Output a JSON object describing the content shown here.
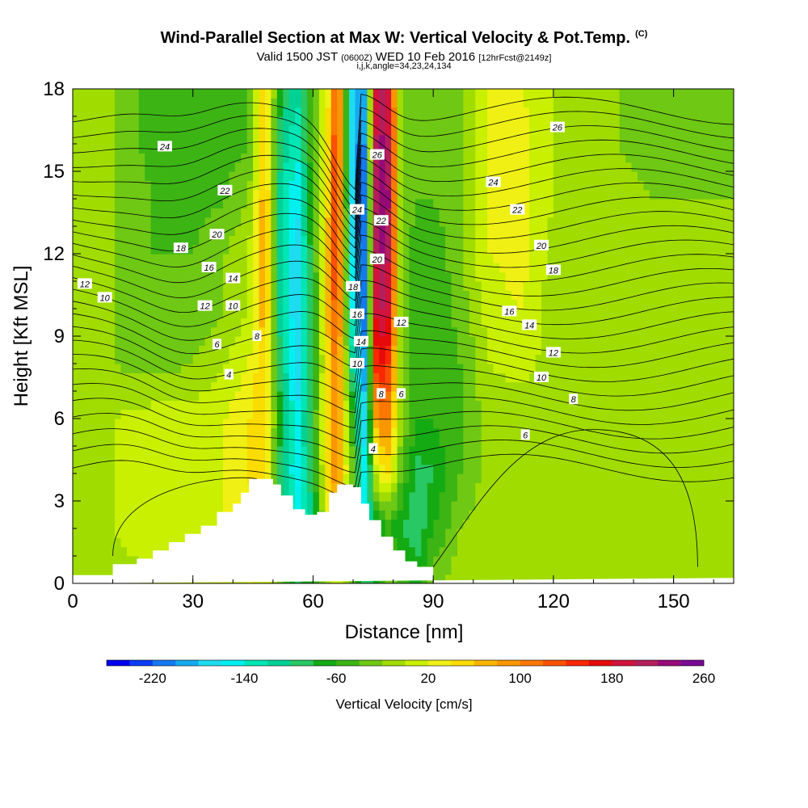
{
  "header": {
    "title": "Wind-Parallel Section at Max W: Vertical Velocity & Pot.Temp.",
    "copyright": "(C)",
    "valid_main": "Valid 1500 JST",
    "valid_utc": "(0600Z)",
    "valid_date": "WED 10 Feb 2016",
    "valid_fcst": "[12hrFcst@2149z]",
    "indices": "i,j,k,angle=34,23,24,134"
  },
  "chart_data": {
    "type": "heatmap",
    "title": "Wind-Parallel Section at Max W: Vertical Velocity & Pot.Temp.",
    "xlabel": "Distance [nm]",
    "ylabel": "Height [Kft MSL]",
    "xlim": [
      0,
      165
    ],
    "ylim": [
      0,
      18
    ],
    "x_ticks": [
      "0",
      "30",
      "60",
      "90",
      "120",
      "150"
    ],
    "y_ticks": [
      "0",
      "3",
      "6",
      "9",
      "12",
      "15",
      "18"
    ],
    "colorbar": {
      "label": "Vertical Velocity [cm/s]",
      "tick_labels": [
        "-220",
        "-140",
        "-60",
        "20",
        "100",
        "180",
        "260"
      ],
      "colors": [
        "#0000f0",
        "#0a3cf5",
        "#1478f0",
        "#14aaf0",
        "#1edcf0",
        "#00f0f0",
        "#00e6b4",
        "#00d296",
        "#28c864",
        "#14aa14",
        "#3cb414",
        "#6ec814",
        "#a0dc00",
        "#c8f000",
        "#f0f014",
        "#fadc00",
        "#fab400",
        "#fa9600",
        "#fa7800",
        "#fa5000",
        "#fa2800",
        "#e60a0a",
        "#d2143c",
        "#b41e5a",
        "#960a78",
        "#780a96"
      ]
    },
    "vertical_velocity_cm_s": {
      "x": [
        0,
        10,
        20,
        30,
        38,
        44,
        48,
        52,
        56,
        60,
        64,
        66,
        70,
        73,
        76,
        79,
        82,
        86,
        90,
        97,
        104,
        112,
        120,
        128,
        136,
        145,
        155,
        165
      ],
      "y": [
        0,
        2,
        4,
        6,
        8,
        10,
        12,
        14,
        16,
        18
      ],
      "values": [
        [
          -10,
          -10,
          0,
          0,
          10,
          20,
          10,
          -40,
          -80,
          -60,
          -20,
          10,
          -40,
          -90,
          -60,
          -20,
          -40,
          -70,
          -30,
          0,
          -10,
          -20,
          -10,
          0,
          0,
          -10,
          -10,
          -10
        ],
        [
          -10,
          0,
          10,
          10,
          20,
          30,
          20,
          -80,
          -140,
          -100,
          20,
          60,
          -60,
          -140,
          -80,
          -60,
          -80,
          -100,
          -60,
          -20,
          -10,
          -20,
          -10,
          -10,
          0,
          -10,
          -10,
          -10
        ],
        [
          -10,
          0,
          10,
          10,
          20,
          40,
          60,
          -100,
          -160,
          -80,
          60,
          100,
          -40,
          -160,
          20,
          40,
          -40,
          -90,
          -80,
          -40,
          -10,
          -20,
          -10,
          -10,
          -10,
          -20,
          -10,
          -10
        ],
        [
          -10,
          0,
          10,
          10,
          20,
          40,
          60,
          -80,
          -160,
          -60,
          60,
          100,
          -60,
          -180,
          100,
          100,
          -20,
          -60,
          -60,
          -40,
          -10,
          -20,
          -10,
          -10,
          -10,
          -20,
          -10,
          -10
        ],
        [
          -10,
          -20,
          -30,
          -20,
          0,
          20,
          60,
          -100,
          -180,
          -80,
          60,
          120,
          -120,
          -200,
          180,
          140,
          -20,
          -60,
          -60,
          -40,
          0,
          10,
          -10,
          -10,
          -10,
          -20,
          -10,
          -10
        ],
        [
          -10,
          -20,
          -40,
          -40,
          -20,
          0,
          80,
          -120,
          -180,
          -80,
          80,
          140,
          -160,
          -220,
          220,
          180,
          -20,
          -60,
          -60,
          -30,
          10,
          20,
          -10,
          -10,
          -10,
          -20,
          -10,
          -10
        ],
        [
          -10,
          -20,
          -40,
          -40,
          -20,
          0,
          80,
          -120,
          -180,
          -60,
          80,
          160,
          -180,
          -220,
          240,
          200,
          -20,
          -60,
          -60,
          -20,
          20,
          30,
          -10,
          -10,
          -10,
          -20,
          -10,
          -10
        ],
        [
          -20,
          -20,
          -40,
          -50,
          -40,
          -20,
          80,
          -120,
          -160,
          -40,
          60,
          160,
          -200,
          -220,
          240,
          220,
          -20,
          -40,
          -40,
          -20,
          20,
          30,
          0,
          -10,
          -10,
          -20,
          -20,
          -20
        ],
        [
          -20,
          -20,
          -50,
          -60,
          -50,
          -40,
          60,
          -100,
          -140,
          -40,
          60,
          160,
          -200,
          -200,
          240,
          200,
          -20,
          -40,
          -40,
          -20,
          20,
          30,
          0,
          -10,
          -20,
          -30,
          -30,
          -20
        ],
        [
          -20,
          -20,
          -50,
          -60,
          -60,
          -40,
          60,
          -80,
          -120,
          -40,
          40,
          140,
          -180,
          -180,
          220,
          180,
          -20,
          -40,
          -40,
          -20,
          20,
          20,
          0,
          -20,
          -20,
          -30,
          -30,
          -20
        ]
      ]
    },
    "potential_temperature_contours": {
      "levels": [
        4,
        6,
        8,
        10,
        12,
        14,
        16,
        18,
        20,
        22,
        24,
        26
      ],
      "labels": [
        {
          "text": "24",
          "x": 23,
          "y": 15.9
        },
        {
          "text": "22",
          "x": 38,
          "y": 14.3
        },
        {
          "text": "20",
          "x": 36,
          "y": 12.7
        },
        {
          "text": "18",
          "x": 27,
          "y": 12.2
        },
        {
          "text": "16",
          "x": 34,
          "y": 11.5
        },
        {
          "text": "14",
          "x": 40,
          "y": 11.1
        },
        {
          "text": "12",
          "x": 3,
          "y": 10.9
        },
        {
          "text": "10",
          "x": 8,
          "y": 10.4
        },
        {
          "text": "12",
          "x": 33,
          "y": 10.1
        },
        {
          "text": "10",
          "x": 40,
          "y": 10.1
        },
        {
          "text": "8",
          "x": 46,
          "y": 9.0
        },
        {
          "text": "6",
          "x": 36,
          "y": 8.7
        },
        {
          "text": "4",
          "x": 39,
          "y": 7.6
        },
        {
          "text": "26",
          "x": 76,
          "y": 15.6
        },
        {
          "text": "24",
          "x": 71,
          "y": 13.6
        },
        {
          "text": "22",
          "x": 77,
          "y": 13.2
        },
        {
          "text": "20",
          "x": 76,
          "y": 11.8
        },
        {
          "text": "18",
          "x": 70,
          "y": 10.8
        },
        {
          "text": "16",
          "x": 71,
          "y": 9.8
        },
        {
          "text": "12",
          "x": 82,
          "y": 9.5
        },
        {
          "text": "14",
          "x": 72,
          "y": 8.8
        },
        {
          "text": "10",
          "x": 71,
          "y": 8.0
        },
        {
          "text": "8",
          "x": 77,
          "y": 6.9
        },
        {
          "text": "6",
          "x": 82,
          "y": 6.9
        },
        {
          "text": "4",
          "x": 75,
          "y": 4.9
        },
        {
          "text": "26",
          "x": 121,
          "y": 16.6
        },
        {
          "text": "24",
          "x": 105,
          "y": 14.6
        },
        {
          "text": "22",
          "x": 111,
          "y": 13.6
        },
        {
          "text": "20",
          "x": 117,
          "y": 12.3
        },
        {
          "text": "18",
          "x": 120,
          "y": 11.4
        },
        {
          "text": "16",
          "x": 109,
          "y": 9.9
        },
        {
          "text": "14",
          "x": 114,
          "y": 9.4
        },
        {
          "text": "12",
          "x": 120,
          "y": 8.4
        },
        {
          "text": "10",
          "x": 117,
          "y": 7.5
        },
        {
          "text": "8",
          "x": 125,
          "y": 6.7
        },
        {
          "text": "6",
          "x": 113,
          "y": 5.4
        }
      ]
    },
    "terrain_kft": {
      "x": [
        0,
        10,
        16,
        20,
        24,
        28,
        32,
        36,
        40,
        42,
        44,
        46,
        50,
        52,
        55,
        58,
        61,
        64,
        66,
        70,
        72,
        74,
        77,
        80,
        83,
        86,
        90
      ],
      "y": [
        0.3,
        0.7,
        0.9,
        1.2,
        1.5,
        1.8,
        2.1,
        2.6,
        2.9,
        3.3,
        3.8,
        3.8,
        3.6,
        3.2,
        2.7,
        2.5,
        2.6,
        3.3,
        3.6,
        3.5,
        2.9,
        2.3,
        1.7,
        1.2,
        0.8,
        0.6,
        0.3
      ]
    }
  }
}
